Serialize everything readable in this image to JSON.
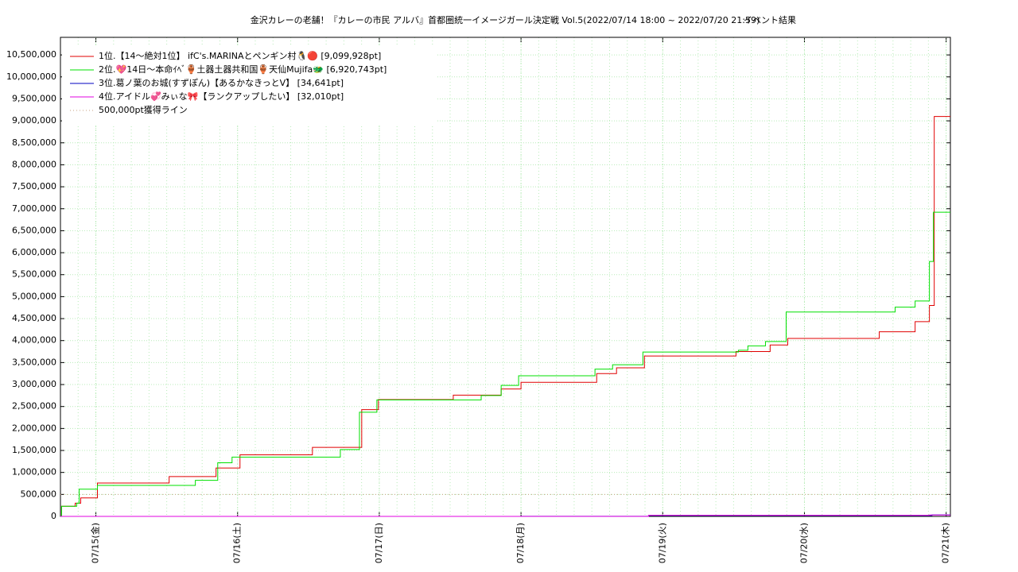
{
  "chart_data": {
    "type": "line",
    "step": true,
    "title": "金沢カレーの老舗！『カレーの市民 アルバ』首都圏統一イメージガール決定戦 Vol.5(2022/07/14 18:00 ~ 2022/07/20 21:59)",
    "subtitle": "イベント結果",
    "xlim": [
      -0.25,
      6.03
    ],
    "ylim": [
      0,
      10900000
    ],
    "xticks": [
      {
        "value": 0,
        "label": "07/15(金)"
      },
      {
        "value": 1,
        "label": "07/16(土)"
      },
      {
        "value": 2,
        "label": "07/17(日)"
      },
      {
        "value": 3,
        "label": "07/18(月)"
      },
      {
        "value": 4,
        "label": "07/19(火)"
      },
      {
        "value": 5,
        "label": "07/20(水)"
      },
      {
        "value": 6,
        "label": "07/21(木)"
      }
    ],
    "yticks": [
      0,
      {
        "value": 500000,
        "label": "500,000"
      },
      {
        "value": 1000000,
        "label": "1,000,000"
      },
      {
        "value": 1500000,
        "label": "1,500,000"
      },
      {
        "value": 2000000,
        "label": "2,000,000"
      },
      {
        "value": 2500000,
        "label": "2,500,000"
      },
      {
        "value": 3000000,
        "label": "3,000,000"
      },
      {
        "value": 3500000,
        "label": "3,500,000"
      },
      {
        "value": 4000000,
        "label": "4,000,000"
      },
      {
        "value": 4500000,
        "label": "4,500,000"
      },
      {
        "value": 5000000,
        "label": "5,000,000"
      },
      {
        "value": 5500000,
        "label": "5,500,000"
      },
      {
        "value": 6000000,
        "label": "6,000,000"
      },
      {
        "value": 6500000,
        "label": "6,500,000"
      },
      {
        "value": 7000000,
        "label": "7,000,000"
      },
      {
        "value": 7500000,
        "label": "7,500,000"
      },
      {
        "value": 8000000,
        "label": "8,000,000"
      },
      {
        "value": 8500000,
        "label": "8,500,000"
      },
      {
        "value": 9000000,
        "label": "9,000,000"
      },
      {
        "value": 9500000,
        "label": "9,500,000"
      },
      {
        "value": 10000000,
        "label": "10,000,000"
      },
      {
        "value": 10500000,
        "label": "10,500,000"
      }
    ],
    "grid": true,
    "grid_color": "#b8ecb8",
    "legend": "upper left",
    "series": [
      {
        "name": "1位.【14〜絶対1位】 ifC's.MARINAとペンギン村🐧🔴 [9,099,928pt]",
        "color": "#e00000",
        "x": [
          -0.25,
          -0.242,
          -0.146,
          -0.107,
          0.011,
          0.517,
          0.848,
          1.017,
          1.528,
          1.876,
          1.994,
          2.522,
          2.86,
          3.0,
          3.534,
          3.674,
          3.871,
          4.517,
          4.758,
          4.882,
          5.528,
          5.781,
          5.882,
          5.916,
          6.03
        ],
        "values": [
          0,
          230000,
          300000,
          420000,
          760000,
          905000,
          1100000,
          1400000,
          1570000,
          2430000,
          2660000,
          2760000,
          2900000,
          3050000,
          3250000,
          3380000,
          3650000,
          3750000,
          3900000,
          4050000,
          4200000,
          4430000,
          4800000,
          9099928,
          9099928
        ]
      },
      {
        "name": "2位.💖14日〜本命ｲﾍﾞ🏺土器土器共和国🏺天仙Mujifa🐲 [6,920,743pt]",
        "color": "#00e000",
        "x": [
          -0.25,
          -0.242,
          -0.135,
          -0.118,
          0.011,
          0.702,
          0.86,
          0.961,
          1.725,
          1.86,
          1.983,
          2.719,
          2.86,
          2.983,
          3.522,
          3.646,
          3.86,
          4.534,
          4.601,
          4.725,
          4.871,
          5.64,
          5.781,
          5.882,
          5.91,
          6.03
        ],
        "values": [
          0,
          230000,
          300000,
          620000,
          706000,
          820000,
          1220000,
          1350000,
          1520000,
          2370000,
          2650000,
          2750000,
          2980000,
          3200000,
          3350000,
          3450000,
          3740000,
          3780000,
          3880000,
          3980000,
          4650000,
          4760000,
          4900000,
          5800000,
          6920743,
          6920743
        ]
      },
      {
        "name": "3位.葛ノ葉のお城(すずぽん)【あるかなきっとV】 [34,641pt]",
        "color": "#0000c0",
        "x": [
          -0.25,
          3.0,
          3.9,
          5.9,
          6.03
        ],
        "values": [
          0,
          2000,
          20000,
          34641,
          34641
        ]
      },
      {
        "name": "4位.アイドル💞みぃな🎀【ランクアップしたい】 [32,010pt]",
        "color": "#e000e0",
        "x": [
          -0.25,
          3.9,
          5.88,
          6.03
        ],
        "values": [
          0,
          25000,
          32010,
          32010
        ]
      },
      {
        "name": "500,000pt獲得ライン",
        "color": "#c8a080",
        "dash": true,
        "x": [
          -0.25,
          6.03
        ],
        "values": [
          500000,
          500000
        ]
      }
    ]
  }
}
